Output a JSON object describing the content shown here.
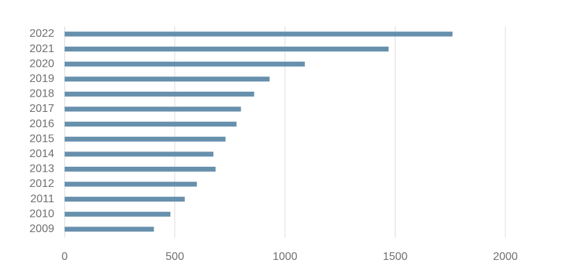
{
  "chart_data": {
    "type": "bar",
    "orientation": "horizontal",
    "categories": [
      "2022",
      "2021",
      "2020",
      "2019",
      "2018",
      "2017",
      "2016",
      "2015",
      "2014",
      "2013",
      "2012",
      "2011",
      "2010",
      "2009"
    ],
    "values": [
      1760,
      1470,
      1090,
      930,
      860,
      800,
      780,
      730,
      675,
      685,
      600,
      545,
      480,
      405
    ],
    "xlim": [
      0,
      2000
    ],
    "xticks": [
      0,
      500,
      1000,
      1500,
      2000
    ],
    "xtick_labels": [
      "0",
      "500",
      "1000",
      "1500",
      "2000"
    ],
    "grid": true,
    "bar_color": "#6790ad",
    "grid_color": "#dedede",
    "label_color": "#6f6f6f"
  }
}
